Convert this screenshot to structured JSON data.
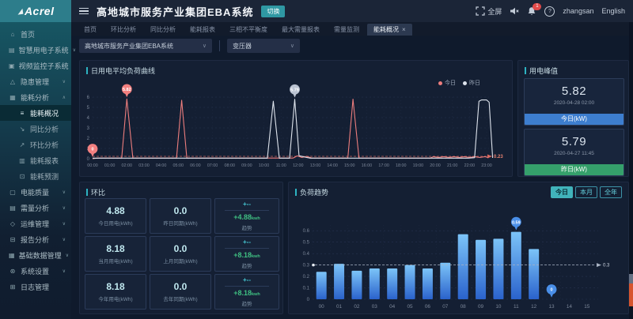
{
  "brand": {
    "logo_text": "Acrel"
  },
  "header": {
    "title": "高地城市服务产业集团EBA系统",
    "switch_label": "切换",
    "fullscreen_label": "全屏",
    "notification_count": "1",
    "username": "zhangsan",
    "language": "English"
  },
  "sidebar": {
    "items": [
      {
        "label": "首页",
        "icon": "home-icon",
        "expandable": false
      },
      {
        "label": "智慧用电子系统",
        "icon": "smart-power-icon",
        "expandable": true
      },
      {
        "label": "视频监控子系统",
        "icon": "video-monitor-icon",
        "expandable": false
      },
      {
        "label": "隐患管理",
        "icon": "hazard-icon",
        "expandable": true
      },
      {
        "label": "能耗分析",
        "icon": "energy-analysis-icon",
        "expandable": true,
        "expanded": true,
        "children": [
          {
            "label": "能耗概况",
            "icon": "overview-icon",
            "active": true
          },
          {
            "label": "同比分析",
            "icon": "yoy-icon"
          },
          {
            "label": "环比分析",
            "icon": "mom-icon"
          },
          {
            "label": "能耗报表",
            "icon": "report-icon"
          },
          {
            "label": "能耗预测",
            "icon": "forecast-icon"
          }
        ]
      },
      {
        "label": "电能质量",
        "icon": "power-quality-icon",
        "expandable": true
      },
      {
        "label": "需量分析",
        "icon": "demand-icon",
        "expandable": true
      },
      {
        "label": "运维管理",
        "icon": "ops-icon",
        "expandable": true
      },
      {
        "label": "报告分析",
        "icon": "report-analysis-icon",
        "expandable": true
      },
      {
        "label": "基础数据管理",
        "icon": "database-icon",
        "expandable": true
      },
      {
        "label": "系统设置",
        "icon": "settings-icon",
        "expandable": true
      },
      {
        "label": "日志管理",
        "icon": "log-icon",
        "expandable": false
      }
    ]
  },
  "tabs": [
    {
      "label": "首页"
    },
    {
      "label": "环比分析"
    },
    {
      "label": "同比分析"
    },
    {
      "label": "能耗报表"
    },
    {
      "label": "三相不平衡度"
    },
    {
      "label": "最大需量报表"
    },
    {
      "label": "需量监测"
    },
    {
      "label": "能耗概况",
      "active": true,
      "closable": true
    }
  ],
  "filters": {
    "project_select": "高地城市服务产业集团EBA系统",
    "device_select": "变压器"
  },
  "peak_panel": {
    "title": "用电峰值",
    "cards": [
      {
        "value": "5.82",
        "time": "2020-04-28 02:00",
        "button": "今日(kW)",
        "button_color": "#3d7ecf"
      },
      {
        "value": "5.79",
        "time": "2020-04-27 11:45",
        "button": "昨日(kW)",
        "button_color": "#35a06b"
      }
    ]
  },
  "huanbi_panel": {
    "title": "环比",
    "rows": [
      {
        "value": "4.88",
        "label": "今日用电(kWh)",
        "prev": "0.0",
        "prev_label": "昨日同期(kWh)",
        "pct": "+--",
        "diff": "+4.88",
        "unit": "kwh",
        "trend_label": "趋势"
      },
      {
        "value": "8.18",
        "label": "当月用电(kWh)",
        "prev": "0.0",
        "prev_label": "上月同期(kWh)",
        "pct": "+--",
        "diff": "+8.18",
        "unit": "kwh",
        "trend_label": "趋势"
      },
      {
        "value": "8.18",
        "label": "今年用电(kWh)",
        "prev": "0.0",
        "prev_label": "去年同期(kWh)",
        "pct": "+--",
        "diff": "+8.18",
        "unit": "kwh",
        "trend_label": "趋势"
      }
    ]
  },
  "bar_panel": {
    "title": "负荷趋势",
    "buttons": [
      {
        "label": "今日",
        "active": true
      },
      {
        "label": "本月",
        "active": false
      },
      {
        "label": "全年",
        "active": false
      }
    ]
  },
  "chart_data": [
    {
      "id": "load_curve",
      "type": "line",
      "title": "日用电平均负荷曲线",
      "legend": [
        {
          "name": "今日",
          "color": "#ec7d7d"
        },
        {
          "name": "昨日",
          "color": "#dde3ec"
        }
      ],
      "x_labels": [
        "00:00",
        "01:00",
        "02:00",
        "03:00",
        "04:00",
        "05:00",
        "06:00",
        "07:00",
        "08:00",
        "09:00",
        "10:00",
        "11:00",
        "12:00",
        "13:00",
        "14:00",
        "15:00",
        "16:00",
        "17:00",
        "18:00",
        "19:00",
        "20:00",
        "21:00",
        "22:00",
        "23:00"
      ],
      "ylim": [
        0,
        6
      ],
      "y_ticks": [
        0,
        1,
        2,
        3,
        4,
        5,
        6
      ],
      "grid": true,
      "series": [
        {
          "name": "今日",
          "color": "#ec7d7d",
          "points": [
            [
              0,
              0
            ],
            [
              0.3,
              0.06
            ],
            [
              1.7,
              0.06
            ],
            [
              2.0,
              5.82
            ],
            [
              2.35,
              0.06
            ],
            [
              4.9,
              0.06
            ],
            [
              5.2,
              5.7
            ],
            [
              5.5,
              0.06
            ],
            [
              11.7,
              0.06
            ],
            [
              11.95,
              0.28
            ],
            [
              12.2,
              0.12
            ],
            [
              12.5,
              0.22
            ],
            [
              12.8,
              0.06
            ],
            [
              14.9,
              0.06
            ],
            [
              15.2,
              5.8
            ],
            [
              15.55,
              0.06
            ],
            [
              19.7,
              0.06
            ],
            [
              19.9,
              0.2
            ],
            [
              20.2,
              0.12
            ],
            [
              20.5,
              0.2
            ],
            [
              20.8,
              0.12
            ],
            [
              21.1,
              0.2
            ],
            [
              21.4,
              0.12
            ],
            [
              21.7,
              0.2
            ],
            [
              22.0,
              0.12
            ],
            [
              22.3,
              0.2
            ],
            [
              22.6,
              0.12
            ],
            [
              22.9,
              0.2
            ],
            [
              23.1,
              0.1
            ]
          ]
        },
        {
          "name": "昨日",
          "color": "#dde3ec",
          "points": [
            [
              0,
              0.05
            ],
            [
              10.2,
              0.05
            ],
            [
              10.55,
              5.6
            ],
            [
              10.9,
              0.05
            ],
            [
              11.5,
              0.05
            ],
            [
              11.8,
              5.79
            ],
            [
              12.05,
              0.3
            ],
            [
              12.4,
              0.15
            ],
            [
              12.7,
              0.05
            ],
            [
              21.9,
              0.05
            ],
            [
              22.3,
              0.1
            ],
            [
              22.55,
              5.6
            ],
            [
              22.7,
              5.72
            ],
            [
              23.0,
              5.72
            ],
            [
              23.15,
              5.5
            ],
            [
              23.35,
              0.08
            ]
          ]
        }
      ],
      "markers": [
        {
          "x": 2.0,
          "y": 5.82,
          "label": "5.82",
          "color": "#f28080"
        },
        {
          "x": 0,
          "y": 0,
          "label": "0",
          "color": "#f28080"
        },
        {
          "x": 11.8,
          "y": 5.79,
          "label": "5.79",
          "color": "#bac3d2"
        }
      ],
      "avg_line": {
        "value": 0.23,
        "label": "0.23",
        "color": "#d96a5f"
      }
    },
    {
      "id": "load_trend",
      "type": "bar",
      "title": "负荷趋势",
      "categories": [
        "00",
        "01",
        "02",
        "03",
        "04",
        "05",
        "06",
        "07",
        "08",
        "09",
        "10",
        "11",
        "12",
        "13",
        "14",
        "15"
      ],
      "values": [
        0.24,
        0.31,
        0.25,
        0.27,
        0.27,
        0.3,
        0.27,
        0.32,
        0.57,
        0.52,
        0.53,
        0.59,
        0.44,
        0
      ],
      "ylim": [
        0,
        0.65
      ],
      "y_ticks": [
        0,
        0.1,
        0.2,
        0.3,
        0.4,
        0.5,
        0.6
      ],
      "grid": true,
      "markers": [
        {
          "index": 11,
          "value": 0.59,
          "label": "0.59"
        },
        {
          "index": 13,
          "value": 0,
          "label": "0"
        }
      ],
      "avg_line": {
        "value": 0.3,
        "label": "0.3",
        "color": "#aab4c4"
      },
      "bar_gradient": [
        "#7cc4f8",
        "#2a62cc"
      ],
      "marker_color": "#4a8fe8"
    }
  ]
}
